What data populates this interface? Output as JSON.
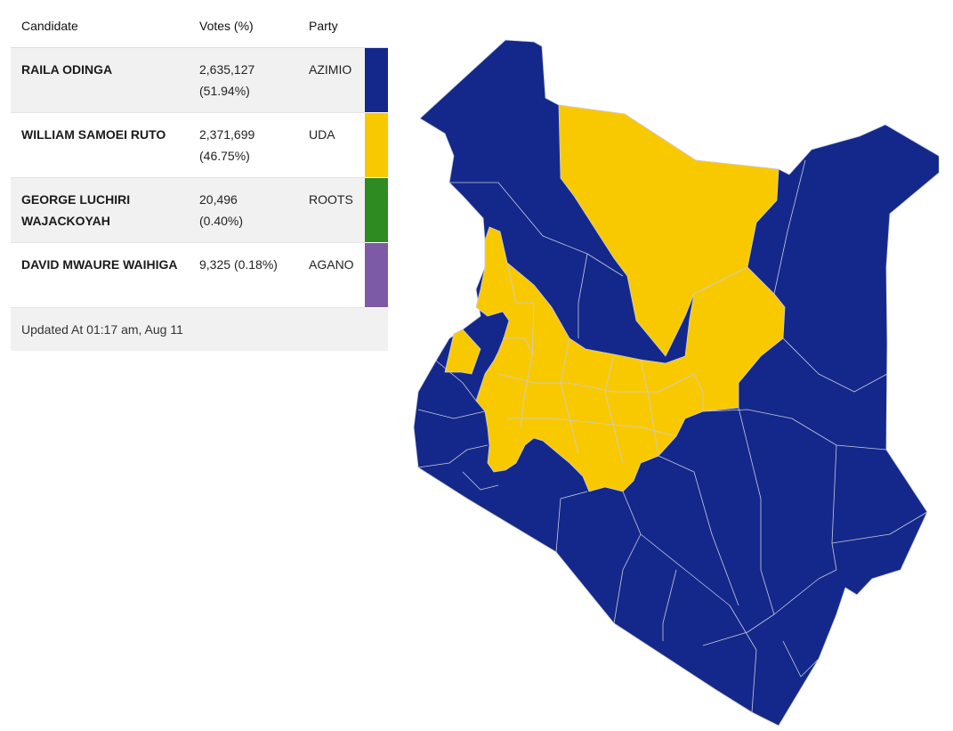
{
  "table": {
    "headers": {
      "candidate": "Candidate",
      "votes": "Votes (%)",
      "party": "Party"
    },
    "rows": [
      {
        "candidate": "RAILA ODINGA",
        "votes": "2,635,127",
        "pct": "(51.94%)",
        "party": "AZIMIO",
        "color": "#13288a"
      },
      {
        "candidate": "WILLIAM SAMOEI RUTO",
        "votes": "2,371,699",
        "pct": "(46.75%)",
        "party": "UDA",
        "color": "#f9c900"
      },
      {
        "candidate": "GEORGE LUCHIRI WAJACKOYAH",
        "votes": "20,496",
        "pct": "(0.40%)",
        "party": "ROOTS",
        "color": "#2e8b22"
      },
      {
        "candidate": "DAVID MWAURE WAIHIGA",
        "votes": "9,325",
        "pct": "(0.18%)",
        "party": "AGANO",
        "color": "#7d5aa6"
      }
    ],
    "updated": "Updated At 01:17 am, Aug 11"
  },
  "map": {
    "colors": {
      "azimio": "#13288a",
      "uda": "#f9c900",
      "border": "#c9cbdf"
    }
  }
}
